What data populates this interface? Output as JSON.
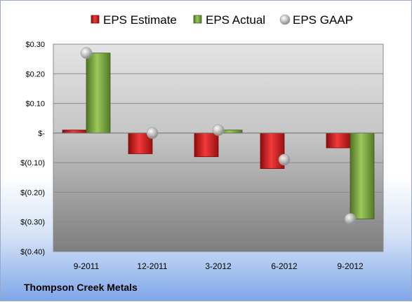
{
  "company": "Thompson Creek Metals",
  "chart_data": {
    "type": "bar",
    "categories": [
      "9-2011",
      "12-2011",
      "3-2012",
      "6-2012",
      "9-2012"
    ],
    "series": [
      {
        "name": "EPS Estimate",
        "kind": "bar",
        "color": "#e02020",
        "values": [
          0.01,
          -0.07,
          -0.08,
          -0.12,
          -0.05
        ]
      },
      {
        "name": "EPS Actual",
        "kind": "bar",
        "color": "#7aa33a",
        "values": [
          0.27,
          null,
          0.01,
          null,
          -0.29
        ]
      },
      {
        "name": "EPS GAAP",
        "kind": "marker",
        "color": "#b8b8b8",
        "values": [
          0.27,
          0.0,
          0.01,
          -0.09,
          -0.29
        ]
      }
    ],
    "ylim": [
      -0.4,
      0.3
    ],
    "yticks": [
      0.3,
      0.2,
      0.1,
      0.0,
      -0.1,
      -0.2,
      -0.3,
      -0.4
    ],
    "ytick_labels": [
      "$0.30",
      "$0.20",
      "$0.10",
      "$-",
      "$(0.10)",
      "$(0.20)",
      "$(0.30)",
      "$(0.40)"
    ],
    "grid": true,
    "legend": "top"
  }
}
